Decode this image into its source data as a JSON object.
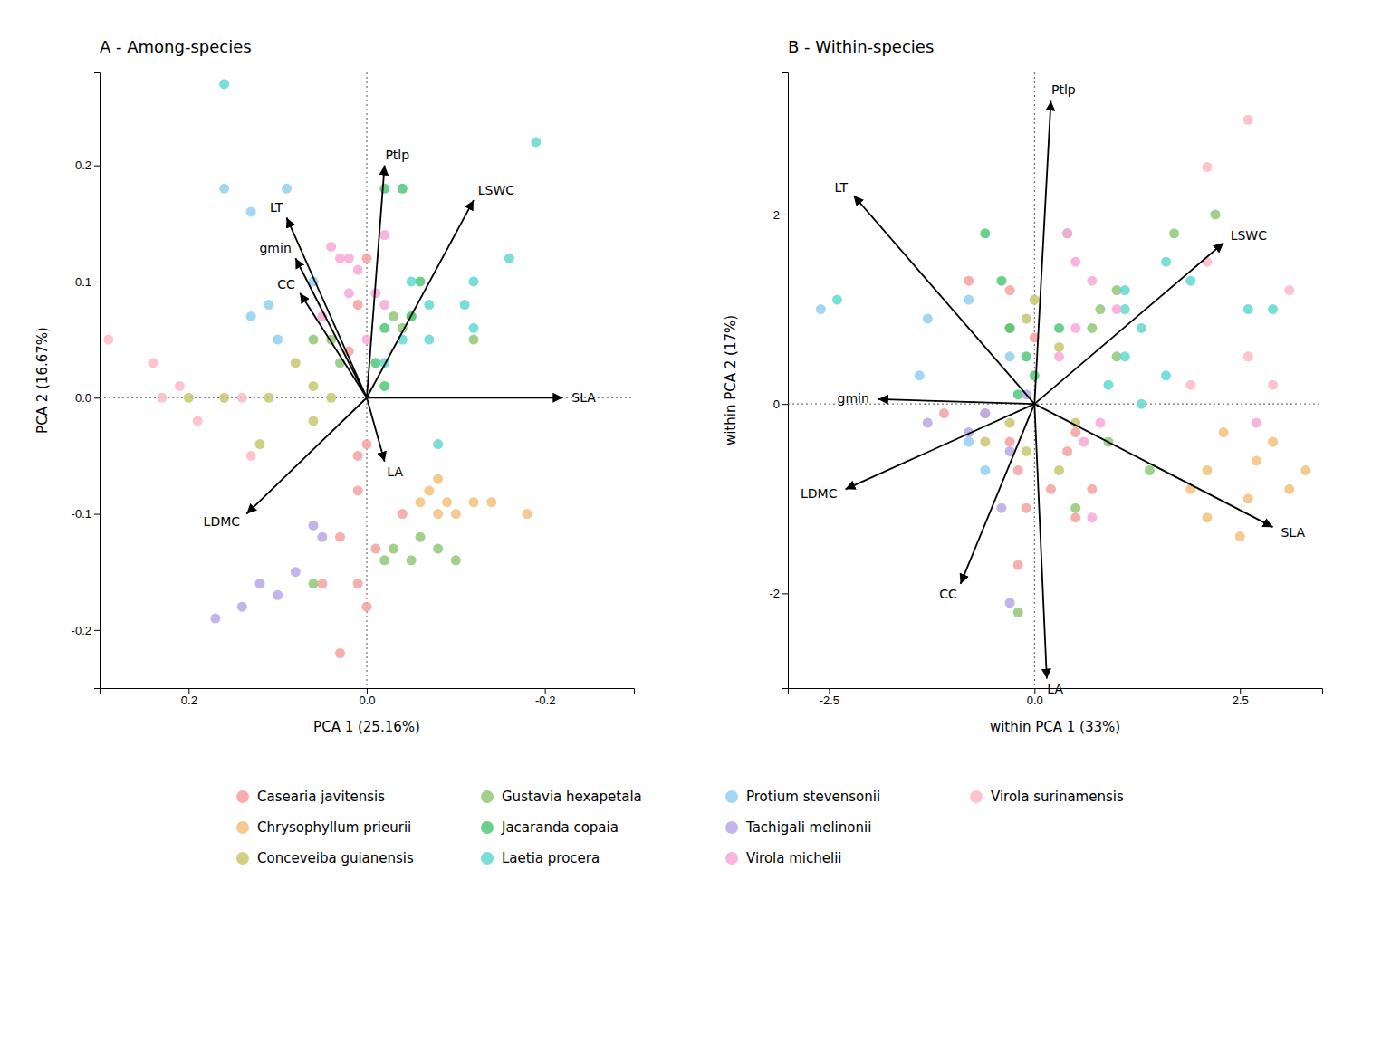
{
  "chart_data": [
    {
      "type": "scatter",
      "title": "A - Among-species",
      "x_label": "PCA 1 (25.16%)",
      "y_label": "PCA 2 (16.67%)",
      "xlim": [
        0.3,
        -0.3
      ],
      "ylim": [
        -0.25,
        0.28
      ],
      "xticks": [
        0.2,
        {
          "value": 0.0,
          "label": "0.0"
        },
        -0.2
      ],
      "yticks": [
        -0.2,
        -0.1,
        {
          "value": 0.0,
          "label": "0.0"
        },
        0.1,
        0.2
      ],
      "grid": false,
      "legend": "bottom",
      "series": [
        {
          "name": "Casearia javitensis",
          "color": "#F4A0A0",
          "x": [
            0.0,
            0.01,
            0.02,
            0.0,
            0.01,
            -0.01,
            0.03,
            0.01,
            0.0,
            0.03,
            0.05,
            0.01,
            -0.04
          ],
          "values": [
            0.12,
            0.08,
            0.04,
            -0.04,
            -0.08,
            -0.13,
            -0.12,
            -0.16,
            -0.18,
            -0.22,
            -0.16,
            -0.05,
            -0.1
          ]
        },
        {
          "name": "Chrysophyllum prieurii",
          "color": "#F5C07A",
          "x": [
            -0.1,
            -0.09,
            -0.08,
            -0.07,
            -0.14,
            -0.12,
            -0.18,
            -0.06,
            -0.08
          ],
          "values": [
            -0.1,
            -0.09,
            -0.1,
            -0.08,
            -0.09,
            -0.09,
            -0.1,
            -0.09,
            -0.07
          ]
        },
        {
          "name": "Conceveiba guianensis",
          "color": "#C8C870",
          "x": [
            0.08,
            0.11,
            0.2,
            0.04,
            0.06,
            0.16,
            0.12,
            0.06
          ],
          "values": [
            0.03,
            0.0,
            0.0,
            0.0,
            -0.02,
            0.0,
            -0.04,
            0.01
          ]
        },
        {
          "name": "Gustavia hexapetala",
          "color": "#90C878",
          "x": [
            -0.03,
            -0.05,
            -0.12,
            -0.08,
            -0.1,
            -0.05,
            -0.03,
            -0.02,
            -0.06,
            -0.04,
            0.04,
            0.06,
            0.03,
            0.06
          ],
          "values": [
            0.07,
            0.07,
            0.05,
            -0.13,
            -0.14,
            -0.14,
            -0.13,
            -0.14,
            -0.12,
            0.06,
            0.05,
            0.05,
            0.03,
            -0.16
          ]
        },
        {
          "name": "Jacaranda copaia",
          "color": "#50C878",
          "x": [
            -0.02,
            -0.04,
            -0.06,
            -0.02,
            -0.05,
            -0.01,
            -0.02
          ],
          "values": [
            0.18,
            0.18,
            0.1,
            0.06,
            0.07,
            0.03,
            0.01
          ]
        },
        {
          "name": "Laetia procera",
          "color": "#60D8D0",
          "x": [
            -0.12,
            -0.07,
            -0.16,
            -0.19,
            -0.12,
            -0.07,
            -0.11,
            -0.08,
            -0.04,
            0.16,
            -0.02,
            -0.05
          ],
          "values": [
            0.1,
            0.08,
            0.12,
            0.22,
            0.06,
            0.05,
            0.08,
            -0.04,
            0.05,
            0.27,
            0.03,
            0.1
          ]
        },
        {
          "name": "Protium stevensonii",
          "color": "#90D0F0",
          "x": [
            0.06,
            0.1,
            0.16,
            0.09,
            0.13,
            0.13,
            0.11
          ],
          "values": [
            0.1,
            0.05,
            0.18,
            0.18,
            0.16,
            0.07,
            0.08
          ]
        },
        {
          "name": "Tachigali melinonii",
          "color": "#B8A8E8",
          "x": [
            0.1,
            0.12,
            0.06,
            0.05,
            0.14,
            0.08,
            0.17
          ],
          "values": [
            -0.17,
            -0.16,
            -0.11,
            -0.12,
            -0.18,
            -0.15,
            -0.19
          ]
        },
        {
          "name": "Virola michelii",
          "color": "#F8A8D8",
          "x": [
            -0.02,
            0.03,
            -0.01,
            0.02,
            0.01,
            0.04,
            0.05,
            0.0,
            -0.02,
            0.02
          ],
          "values": [
            0.08,
            0.12,
            0.09,
            0.09,
            0.11,
            0.13,
            0.07,
            0.05,
            0.14,
            0.12
          ]
        },
        {
          "name": "Virola surinamensis",
          "color": "#FFB8C8",
          "x": [
            0.23,
            0.19,
            0.24,
            0.14,
            0.29,
            0.21,
            0.13
          ],
          "values": [
            0.0,
            -0.02,
            0.03,
            0.0,
            0.05,
            0.01,
            -0.05
          ]
        }
      ],
      "annotations": [
        {
          "text": "SLA",
          "x0": 0,
          "y0": 0,
          "x": -0.22,
          "y": 0.0
        },
        {
          "text": "LDMC",
          "x0": 0,
          "y0": 0,
          "x": 0.135,
          "y": -0.1
        },
        {
          "text": "LT",
          "x0": 0,
          "y0": 0,
          "x": 0.09,
          "y": 0.155
        },
        {
          "text": "LA",
          "x0": 0,
          "y0": 0,
          "x": -0.02,
          "y": -0.055
        },
        {
          "text": "CC",
          "x0": 0,
          "y0": 0,
          "x": 0.075,
          "y": 0.09
        },
        {
          "text": "gmin",
          "x0": 0,
          "y0": 0,
          "x": 0.08,
          "y": 0.12
        },
        {
          "text": "Ptlp",
          "x0": 0,
          "y0": 0,
          "x": -0.02,
          "y": 0.2
        },
        {
          "text": "LSWC",
          "x0": 0,
          "y0": 0,
          "x": -0.12,
          "y": 0.17
        }
      ]
    },
    {
      "type": "scatter",
      "title": "B - Within-species",
      "x_label": "within PCA 1 (33%)",
      "y_label": "within PCA 2 (17%)",
      "xlim": [
        -3.0,
        3.5
      ],
      "ylim": [
        -3.0,
        3.5
      ],
      "xticks": [
        -2.5,
        {
          "value": 0.0,
          "label": "0.0"
        },
        2.5
      ],
      "yticks": [
        -2,
        0,
        2
      ],
      "grid": false,
      "series": [
        {
          "name": "Casearia javitensis",
          "color": "#F4A0A0",
          "x": [
            -0.8,
            -0.3,
            0.0,
            -0.3,
            0.4,
            0.7,
            -0.1,
            0.5,
            -1.1,
            -0.2,
            0.2,
            -0.2,
            0.5,
            -0.6
          ],
          "values": [
            1.3,
            1.2,
            0.7,
            -0.4,
            -0.5,
            -0.9,
            -1.1,
            -1.2,
            -0.1,
            -1.7,
            -0.9,
            -0.7,
            -0.3,
            -0.1
          ]
        },
        {
          "name": "Chrysophyllum prieurii",
          "color": "#F5C07A",
          "x": [
            2.6,
            2.9,
            2.1,
            1.9,
            3.1,
            2.7,
            2.5,
            2.3,
            3.3,
            2.1
          ],
          "values": [
            -1.0,
            -0.4,
            -0.7,
            -0.9,
            -0.9,
            -0.6,
            -1.4,
            -0.3,
            -0.7,
            -1.2
          ]
        },
        {
          "name": "Conceveiba guianensis",
          "color": "#C8C870",
          "x": [
            -0.3,
            -0.6,
            0.3,
            0.5,
            -0.1,
            0.0,
            0.3,
            -0.3,
            -0.1
          ],
          "values": [
            -0.2,
            -0.4,
            -0.7,
            -0.2,
            0.9,
            1.1,
            0.6,
            0.8,
            -0.5
          ]
        },
        {
          "name": "Gustavia hexapetala",
          "color": "#90C878",
          "x": [
            0.4,
            0.7,
            1.0,
            0.8,
            1.7,
            0.9,
            1.4,
            0.5,
            -0.2,
            1.0,
            2.2
          ],
          "values": [
            1.8,
            0.8,
            0.5,
            1.0,
            1.8,
            -0.4,
            -0.7,
            -1.1,
            -2.2,
            1.2,
            2.0
          ]
        },
        {
          "name": "Jacaranda copaia",
          "color": "#50C878",
          "x": [
            -0.6,
            -0.3,
            -0.1,
            -0.4,
            0.3,
            0.0,
            -0.2
          ],
          "values": [
            1.8,
            0.8,
            0.5,
            1.3,
            0.8,
            0.3,
            0.1
          ]
        },
        {
          "name": "Laetia procera",
          "color": "#60D8D0",
          "x": [
            1.6,
            1.1,
            1.3,
            2.6,
            1.9,
            1.3,
            1.1,
            0.9,
            2.9,
            1.6,
            1.1,
            -2.4
          ],
          "values": [
            1.5,
            1.2,
            0.8,
            1.0,
            1.3,
            -0.0,
            0.5,
            0.2,
            1.0,
            0.3,
            1.0,
            1.1
          ]
        },
        {
          "name": "Protium stevensonii",
          "color": "#90D0F0",
          "x": [
            -2.6,
            -1.4,
            -0.3,
            -0.8,
            -1.3,
            -0.8,
            -0.6
          ],
          "values": [
            1.0,
            0.3,
            0.5,
            1.1,
            0.9,
            -0.4,
            -0.7
          ]
        },
        {
          "name": "Tachigali melinonii",
          "color": "#B8A8E8",
          "x": [
            -0.6,
            -0.3,
            -0.8,
            -0.1,
            -0.4,
            -1.3,
            -0.3
          ],
          "values": [
            -0.1,
            -0.5,
            -0.3,
            0.1,
            -1.1,
            -0.2,
            -2.1
          ]
        },
        {
          "name": "Virola michelii",
          "color": "#F8A8D8",
          "x": [
            0.5,
            0.4,
            0.7,
            0.5,
            1.0,
            0.8,
            0.6,
            0.3,
            0.7,
            2.7
          ],
          "values": [
            0.8,
            1.8,
            1.3,
            1.5,
            1.0,
            -0.2,
            -0.4,
            0.5,
            -1.2,
            -0.2
          ]
        },
        {
          "name": "Virola surinamensis",
          "color": "#FFB8C8",
          "x": [
            2.6,
            2.1,
            3.1,
            2.1,
            2.6,
            2.9,
            1.9
          ],
          "values": [
            3.0,
            2.5,
            1.2,
            1.5,
            0.5,
            0.2,
            0.2
          ]
        }
      ],
      "annotations": [
        {
          "text": "SLA",
          "x0": 0,
          "y0": 0,
          "x": 2.9,
          "y": -1.3
        },
        {
          "text": "LDMC",
          "x0": 0,
          "y0": 0,
          "x": -2.3,
          "y": -0.9
        },
        {
          "text": "LT",
          "x0": 0,
          "y0": 0,
          "x": -2.2,
          "y": 2.2
        },
        {
          "text": "LA",
          "x0": 0,
          "y0": 0,
          "x": 0.15,
          "y": -2.9
        },
        {
          "text": "CC",
          "x0": 0,
          "y0": 0,
          "x": -0.9,
          "y": -1.9
        },
        {
          "text": "gmin",
          "x0": 0,
          "y0": 0,
          "x": -1.9,
          "y": 0.05
        },
        {
          "text": "Ptlp",
          "x0": 0,
          "y0": 0,
          "x": 0.2,
          "y": 3.2
        },
        {
          "text": "LSWC",
          "x0": 0,
          "y0": 0,
          "x": 2.3,
          "y": 1.7
        }
      ]
    }
  ]
}
